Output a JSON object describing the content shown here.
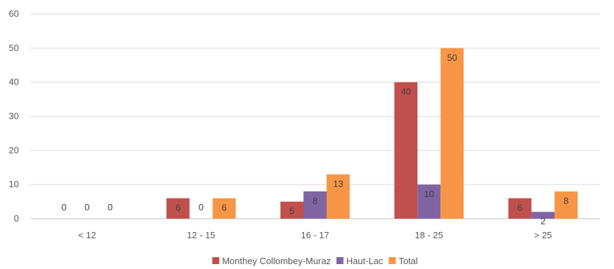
{
  "chart_data": {
    "type": "bar",
    "title": "",
    "xlabel": "",
    "ylabel": "",
    "categories": [
      "< 12",
      "12 - 15",
      "16 - 17",
      "18 - 25",
      "> 25"
    ],
    "series": [
      {
        "name": "Monthey Collombey-Muraz",
        "color": "#c0504d",
        "values": [
          0,
          6,
          5,
          40,
          6
        ]
      },
      {
        "name": "Haut-Lac",
        "color": "#8064a2",
        "values": [
          0,
          0,
          8,
          10,
          2
        ]
      },
      {
        "name": "Total",
        "color": "#f79646",
        "values": [
          0,
          6,
          13,
          50,
          8
        ]
      }
    ],
    "ylim": [
      0,
      60
    ],
    "yticks": [
      0,
      10,
      20,
      30,
      40,
      50,
      60
    ],
    "grid": true,
    "legend_position": "bottom"
  }
}
